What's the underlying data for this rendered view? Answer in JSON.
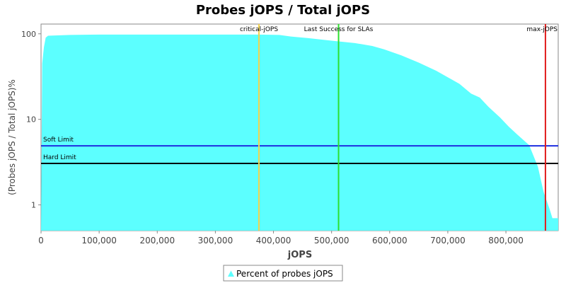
{
  "chart_data": {
    "type": "area",
    "title": "Probes jOPS / Total jOPS",
    "xlabel": "jOPS",
    "ylabel": "(Probes jOPS / Total jOPS)%",
    "y_scale": "log",
    "xlim": [
      0,
      890000
    ],
    "ylim": [
      0.5,
      130
    ],
    "x_ticks": [
      0,
      100000,
      200000,
      300000,
      400000,
      500000,
      600000,
      700000,
      800000
    ],
    "x_tick_labels": [
      "0",
      "100,000",
      "200,000",
      "300,000",
      "400,000",
      "500,000",
      "600,000",
      "700,000",
      "800,000"
    ],
    "y_ticks": [
      1,
      10,
      100
    ],
    "y_tick_labels": [
      "1",
      "10",
      "100"
    ],
    "grid": false,
    "legend_position": "bottom-center",
    "series": [
      {
        "name": "Percent of probes jOPS",
        "color": "#5cffff",
        "x": [
          0,
          2000,
          5000,
          8000,
          12000,
          50000,
          100000,
          200000,
          300000,
          370000,
          410000,
          430000,
          460000,
          500000,
          540000,
          570000,
          590000,
          620000,
          650000,
          680000,
          700000,
          720000,
          740000,
          755000,
          770000,
          790000,
          805000,
          820000,
          840000,
          855000,
          865000,
          875000,
          880000,
          890000
        ],
        "y": [
          0.5,
          45,
          70,
          90,
          95,
          97,
          98,
          98,
          98,
          98,
          97,
          93,
          89,
          83,
          78,
          72,
          66,
          56,
          46,
          37,
          31,
          26,
          20,
          18,
          14,
          10.5,
          8.2,
          6.6,
          5,
          2.8,
          1.4,
          0.9,
          0.7,
          0.7
        ]
      }
    ],
    "reference_lines": [
      {
        "orientation": "vertical",
        "label": "critical-jOPS",
        "x": 375000,
        "color": "#f2d24e"
      },
      {
        "orientation": "vertical",
        "label": "Last Success for SLAs",
        "x": 512000,
        "color": "#2ee02e"
      },
      {
        "orientation": "vertical",
        "label": "max-jOPS",
        "x": 868000,
        "color": "#e11b1b"
      },
      {
        "orientation": "horizontal",
        "label": "Soft Limit",
        "y": 4.9,
        "color": "#1e2ee0"
      },
      {
        "orientation": "horizontal",
        "label": "Hard Limit",
        "y": 3.05,
        "color": "#000000"
      }
    ]
  }
}
